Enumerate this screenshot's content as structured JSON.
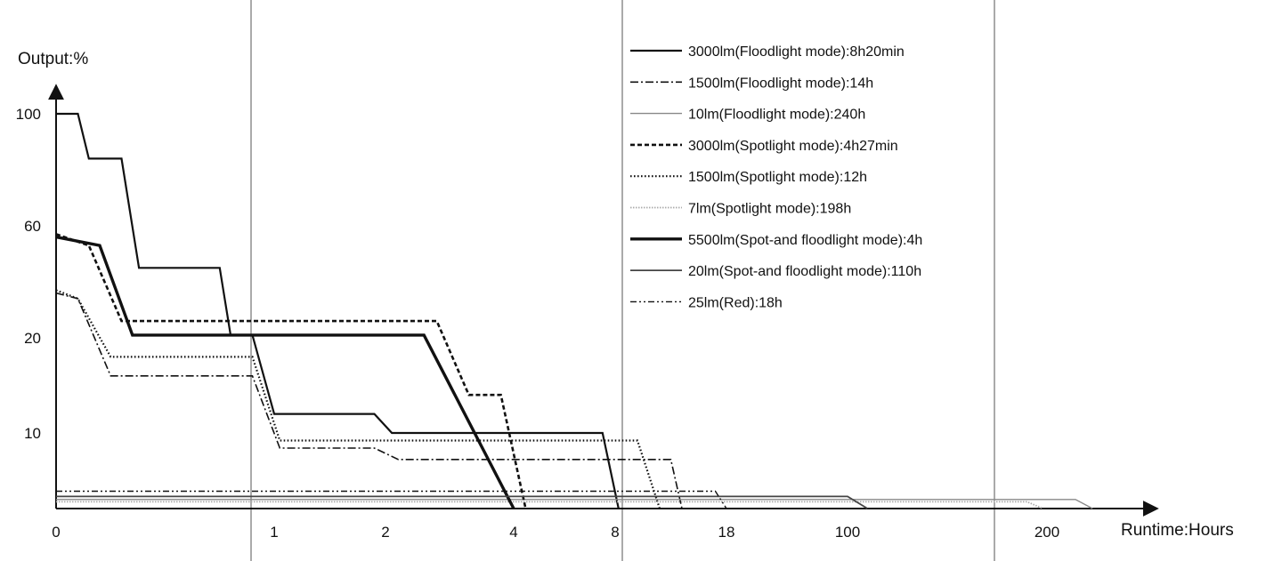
{
  "chart_data": {
    "type": "line",
    "xlabel": "Runtime:Hours",
    "ylabel": "Output:%",
    "x_ticks": [
      "0",
      "1",
      "2",
      "4",
      "8",
      "18",
      "100",
      "200"
    ],
    "y_ticks": [
      "100",
      "60",
      "20",
      "10"
    ],
    "x_scale": "piecewise (0,1,2,4,8,18,100,200 printed at uneven spacing)",
    "y_scale": "piecewise (100,60,20,10 printed at uneven spacing)",
    "grid": "vertical lines only",
    "legend_position": "top-right",
    "series": [
      {
        "name": "3000lm(Floodlight mode):8h20min",
        "style": "solid",
        "points": [
          [
            0,
            100
          ],
          [
            0.1,
            100
          ],
          [
            0.15,
            84
          ],
          [
            0.3,
            84
          ],
          [
            0.38,
            45
          ],
          [
            0.75,
            45
          ],
          [
            0.8,
            21
          ],
          [
            0.9,
            21
          ],
          [
            1,
            12
          ],
          [
            1.9,
            12
          ],
          [
            2.1,
            10
          ],
          [
            7.5,
            10
          ],
          [
            8.3,
            0
          ]
        ]
      },
      {
        "name": "1500lm(Floodlight mode):14h",
        "style": "dash-dot",
        "points": [
          [
            0,
            36
          ],
          [
            0.1,
            34
          ],
          [
            0.25,
            16
          ],
          [
            0.9,
            16
          ],
          [
            1.05,
            8
          ],
          [
            1.9,
            8
          ],
          [
            2.2,
            6.5
          ],
          [
            13,
            6.5
          ],
          [
            14,
            0
          ]
        ]
      },
      {
        "name": "10lm(Floodlight mode):240h",
        "style": "solid-thin",
        "points": [
          [
            0,
            1.2
          ],
          [
            225,
            1.2
          ],
          [
            240,
            0
          ]
        ]
      },
      {
        "name": "3000lm(Spotlight mode):4h27min",
        "style": "dashed",
        "points": [
          [
            0,
            57
          ],
          [
            0.15,
            53
          ],
          [
            0.3,
            26
          ],
          [
            2.8,
            26
          ],
          [
            3.3,
            14
          ],
          [
            3.8,
            14
          ],
          [
            4.47,
            0
          ]
        ]
      },
      {
        "name": "1500lm(Spotlight mode):12h",
        "style": "dotted",
        "points": [
          [
            0,
            37
          ],
          [
            0.1,
            34
          ],
          [
            0.25,
            18
          ],
          [
            0.9,
            18
          ],
          [
            1.05,
            9
          ],
          [
            10,
            9
          ],
          [
            12,
            0
          ]
        ]
      },
      {
        "name": "7lm(Spotlight mode):198h",
        "style": "dotted-light",
        "points": [
          [
            0,
            0.9
          ],
          [
            190,
            0.9
          ],
          [
            198,
            0
          ]
        ]
      },
      {
        "name": "5500lm(Spot-and floodlight mode):4h",
        "style": "solid-bold",
        "points": [
          [
            0,
            56
          ],
          [
            0.2,
            53
          ],
          [
            0.35,
            21
          ],
          [
            2.6,
            21
          ],
          [
            4,
            0
          ]
        ]
      },
      {
        "name": "20lm(Spot-and floodlight mode):110h",
        "style": "solid-medium",
        "points": [
          [
            0,
            1.6
          ],
          [
            100,
            1.6
          ],
          [
            110,
            0
          ]
        ]
      },
      {
        "name": "25lm(Red):18h",
        "style": "dash-dot-dot",
        "points": [
          [
            0,
            2.3
          ],
          [
            17,
            2.3
          ],
          [
            18,
            0
          ]
        ]
      }
    ]
  }
}
